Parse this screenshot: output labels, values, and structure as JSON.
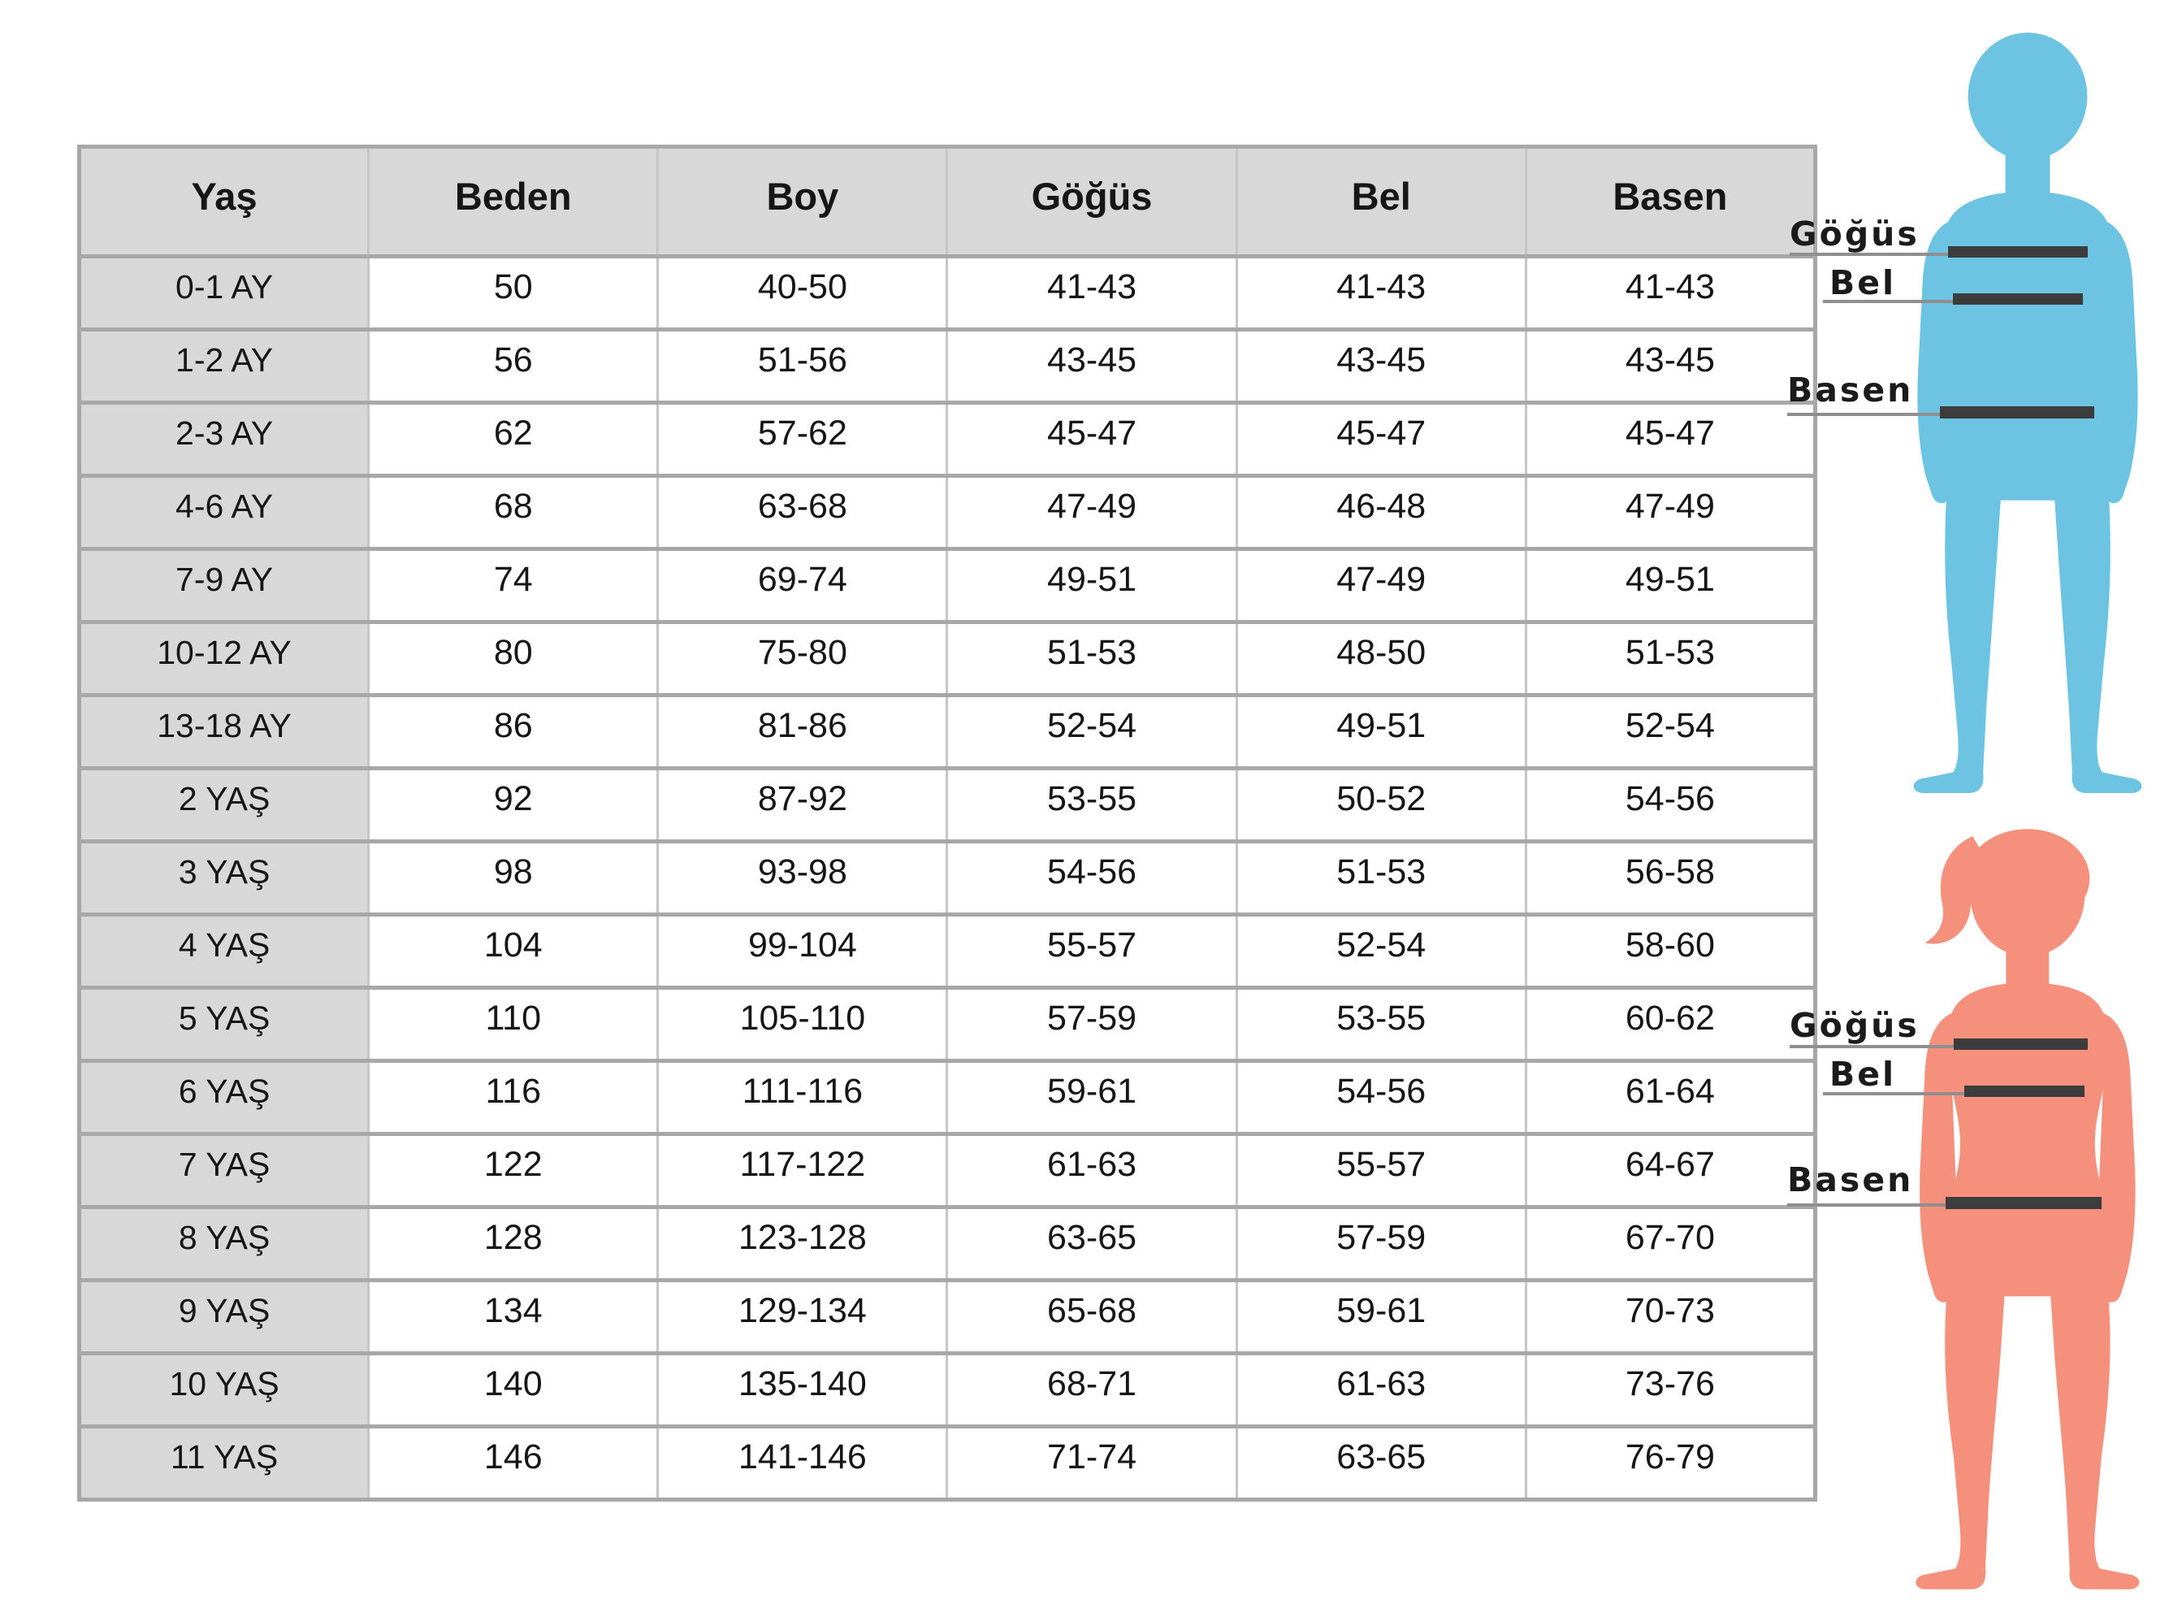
{
  "chart_data": {
    "type": "table",
    "columns": [
      "Yaş",
      "Beden",
      "Boy",
      "Göğüs",
      "Bel",
      "Basen"
    ],
    "rows": [
      [
        "0-1 AY",
        "50",
        "40-50",
        "41-43",
        "41-43",
        "41-43"
      ],
      [
        "1-2 AY",
        "56",
        "51-56",
        "43-45",
        "43-45",
        "43-45"
      ],
      [
        "2-3 AY",
        "62",
        "57-62",
        "45-47",
        "45-47",
        "45-47"
      ],
      [
        "4-6 AY",
        "68",
        "63-68",
        "47-49",
        "46-48",
        "47-49"
      ],
      [
        "7-9 AY",
        "74",
        "69-74",
        "49-51",
        "47-49",
        "49-51"
      ],
      [
        "10-12 AY",
        "80",
        "75-80",
        "51-53",
        "48-50",
        "51-53"
      ],
      [
        "13-18 AY",
        "86",
        "81-86",
        "52-54",
        "49-51",
        "52-54"
      ],
      [
        "2 YAŞ",
        "92",
        "87-92",
        "53-55",
        "50-52",
        "54-56"
      ],
      [
        "3 YAŞ",
        "98",
        "93-98",
        "54-56",
        "51-53",
        "56-58"
      ],
      [
        "4 YAŞ",
        "104",
        "99-104",
        "55-57",
        "52-54",
        "58-60"
      ],
      [
        "5 YAŞ",
        "110",
        "105-110",
        "57-59",
        "53-55",
        "60-62"
      ],
      [
        "6 YAŞ",
        "116",
        "111-116",
        "59-61",
        "54-56",
        "61-64"
      ],
      [
        "7 YAŞ",
        "122",
        "117-122",
        "61-63",
        "55-57",
        "64-67"
      ],
      [
        "8 YAŞ",
        "128",
        "123-128",
        "63-65",
        "57-59",
        "67-70"
      ],
      [
        "9 YAŞ",
        "134",
        "129-134",
        "65-68",
        "59-61",
        "70-73"
      ],
      [
        "10 YAŞ",
        "140",
        "135-140",
        "68-71",
        "61-63",
        "73-76"
      ],
      [
        "11 YAŞ",
        "146",
        "141-146",
        "71-74",
        "63-65",
        "76-79"
      ]
    ],
    "layout": {
      "header_row": true,
      "first_column_is_label": true,
      "grid": "on"
    }
  },
  "silhouettes": {
    "boy": {
      "color": "#6cc3e2",
      "labels": {
        "chest": "Göğüs",
        "waist": "Bel",
        "hips": "Basen"
      }
    },
    "girl": {
      "color": "#f5907c",
      "labels": {
        "chest": "Göğüs",
        "waist": "Bel",
        "hips": "Basen"
      }
    }
  },
  "colors": {
    "header_bg": "#d8d8d8",
    "row_label_bg": "#d8d8d8",
    "border_horizontal": "#a8a8a8",
    "border_vertical": "#c6c6c6",
    "text": "#161616",
    "measure_bar": "#3c3c3c",
    "measure_line": "#8f8f8f",
    "boy_fill": "#6cc3e2",
    "girl_fill": "#f5907c"
  }
}
